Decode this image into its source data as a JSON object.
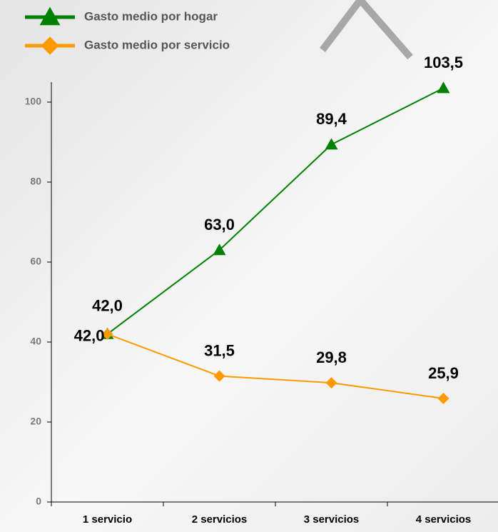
{
  "chart_data": {
    "type": "line",
    "categories": [
      "1 servicio",
      "2 servicios",
      "3 servicios",
      "4 servicios"
    ],
    "series": [
      {
        "name": "Gasto medio por hogar",
        "color": "#008000",
        "marker": "triangle",
        "values": [
          42.0,
          63.0,
          89.4,
          103.5
        ],
        "value_labels": [
          "42,0",
          "63,0",
          "89,4",
          "103,5"
        ]
      },
      {
        "name": "Gasto medio por servicio",
        "color": "#ff9900",
        "marker": "diamond",
        "values": [
          42.0,
          31.5,
          29.8,
          25.9
        ],
        "value_labels": [
          "42,0",
          "31,5",
          "29,8",
          "25,9"
        ]
      }
    ],
    "ylim": [
      0,
      105
    ],
    "yticks": [
      0,
      20,
      40,
      60,
      80,
      100
    ],
    "grid": false,
    "legend": "top-left"
  }
}
